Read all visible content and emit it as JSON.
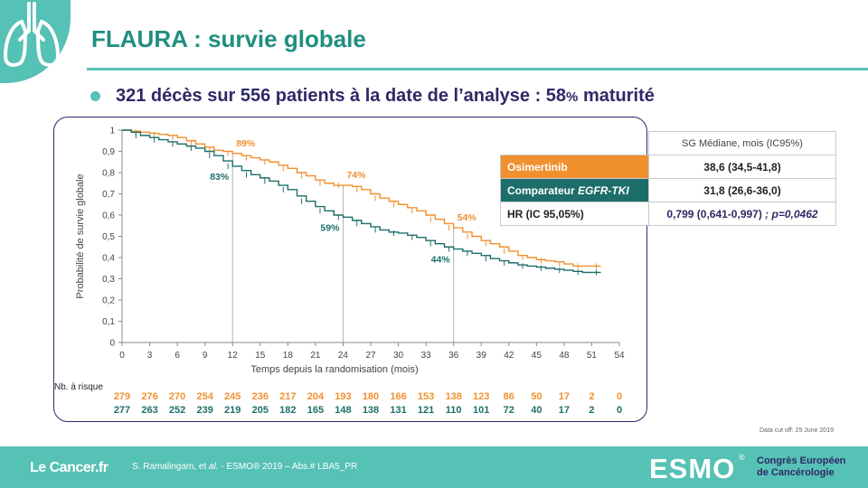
{
  "slide": {
    "title": "FLAURA : survie globale",
    "subtitle_main": "321 décès sur 556 patients à la date de l’analyse : 58",
    "subtitle_pct": "%",
    "subtitle_tail": " maturité",
    "data_cutoff": "Data cut off: 25 June 2019"
  },
  "icons": {
    "badge": "lungs-icon"
  },
  "colors": {
    "teal": "#56c1b5",
    "title": "#1f8f80",
    "navy": "#2e2a66",
    "osimertinib": "#f0902e",
    "comparator": "#1d6e6a"
  },
  "chart_data": {
    "type": "line",
    "xlabel": "Temps depuis la randomisation (mois)",
    "ylabel": "Probabilité de survie globale",
    "xlim": [
      0,
      54
    ],
    "ylim": [
      0,
      1
    ],
    "xticks": [
      "0",
      "3",
      "6",
      "9",
      "12",
      "15",
      "18",
      "21",
      "24",
      "27",
      "30",
      "33",
      "36",
      "39",
      "42",
      "45",
      "48",
      "51",
      "54"
    ],
    "yticks": [
      "0",
      "0,1",
      "0,2",
      "0,3",
      "0,4",
      "0,5",
      "0,6",
      "0,7",
      "0,8",
      "0,9",
      "1"
    ],
    "series": [
      {
        "color": "#f0902e",
        "points": [
          [
            0,
            1
          ],
          [
            1,
            0.995
          ],
          [
            2,
            0.99
          ],
          [
            3,
            0.985
          ],
          [
            4,
            0.98
          ],
          [
            5,
            0.975
          ],
          [
            6,
            0.965
          ],
          [
            7,
            0.95
          ],
          [
            8,
            0.935
          ],
          [
            9,
            0.92
          ],
          [
            10,
            0.905
          ],
          [
            11,
            0.9
          ],
          [
            12,
            0.89
          ],
          [
            13,
            0.88
          ],
          [
            14,
            0.87
          ],
          [
            15,
            0.86
          ],
          [
            16,
            0.85
          ],
          [
            17,
            0.835
          ],
          [
            18,
            0.82
          ],
          [
            19,
            0.8
          ],
          [
            20,
            0.785
          ],
          [
            21,
            0.765
          ],
          [
            22,
            0.75
          ],
          [
            23,
            0.74
          ],
          [
            24,
            0.74
          ],
          [
            25,
            0.735
          ],
          [
            26,
            0.72
          ],
          [
            27,
            0.7
          ],
          [
            28,
            0.68
          ],
          [
            29,
            0.665
          ],
          [
            30,
            0.65
          ],
          [
            31,
            0.635
          ],
          [
            32,
            0.62
          ],
          [
            33,
            0.6
          ],
          [
            34,
            0.58
          ],
          [
            35,
            0.56
          ],
          [
            36,
            0.54
          ],
          [
            37,
            0.52
          ],
          [
            38,
            0.5
          ],
          [
            39,
            0.48
          ],
          [
            40,
            0.465
          ],
          [
            41,
            0.45
          ],
          [
            42,
            0.43
          ],
          [
            43,
            0.41
          ],
          [
            44,
            0.4
          ],
          [
            45,
            0.39
          ],
          [
            46,
            0.385
          ],
          [
            47,
            0.38
          ],
          [
            48,
            0.37
          ],
          [
            49,
            0.36
          ],
          [
            50,
            0.36
          ],
          [
            51,
            0.36
          ],
          [
            52,
            0.36
          ]
        ]
      },
      {
        "color": "#1d6e6a",
        "points": [
          [
            0,
            1
          ],
          [
            1,
            0.99
          ],
          [
            2,
            0.975
          ],
          [
            3,
            0.965
          ],
          [
            4,
            0.955
          ],
          [
            5,
            0.945
          ],
          [
            6,
            0.935
          ],
          [
            7,
            0.925
          ],
          [
            8,
            0.915
          ],
          [
            9,
            0.9
          ],
          [
            10,
            0.88
          ],
          [
            11,
            0.855
          ],
          [
            12,
            0.83
          ],
          [
            13,
            0.81
          ],
          [
            14,
            0.79
          ],
          [
            15,
            0.775
          ],
          [
            16,
            0.76
          ],
          [
            17,
            0.74
          ],
          [
            18,
            0.72
          ],
          [
            19,
            0.69
          ],
          [
            20,
            0.665
          ],
          [
            21,
            0.64
          ],
          [
            22,
            0.62
          ],
          [
            23,
            0.6
          ],
          [
            24,
            0.59
          ],
          [
            25,
            0.575
          ],
          [
            26,
            0.56
          ],
          [
            27,
            0.545
          ],
          [
            28,
            0.53
          ],
          [
            29,
            0.52
          ],
          [
            30,
            0.515
          ],
          [
            31,
            0.505
          ],
          [
            32,
            0.495
          ],
          [
            33,
            0.48
          ],
          [
            34,
            0.465
          ],
          [
            35,
            0.45
          ],
          [
            36,
            0.44
          ],
          [
            37,
            0.43
          ],
          [
            38,
            0.42
          ],
          [
            39,
            0.41
          ],
          [
            40,
            0.395
          ],
          [
            41,
            0.385
          ],
          [
            42,
            0.375
          ],
          [
            43,
            0.365
          ],
          [
            44,
            0.36
          ],
          [
            45,
            0.355
          ],
          [
            46,
            0.35
          ],
          [
            47,
            0.345
          ],
          [
            48,
            0.34
          ],
          [
            49,
            0.335
          ],
          [
            50,
            0.33
          ],
          [
            51,
            0.33
          ],
          [
            52,
            0.33
          ]
        ]
      }
    ],
    "annotations": [
      {
        "text": "89%",
        "x": 12,
        "y": 0.89,
        "series": 0
      },
      {
        "text": "83%",
        "x": 12,
        "y": 0.83,
        "series": 1
      },
      {
        "text": "74%",
        "x": 24,
        "y": 0.74,
        "series": 0
      },
      {
        "text": "59%",
        "x": 24,
        "y": 0.59,
        "series": 1
      },
      {
        "text": "54%",
        "x": 36,
        "y": 0.54,
        "series": 0
      },
      {
        "text": "44%",
        "x": 36,
        "y": 0.44,
        "series": 1
      }
    ],
    "reference_lines_x": [
      12,
      24,
      36
    ],
    "risk_table": {
      "label": "Nb. à risque",
      "osimertinib": [
        "279",
        "276",
        "270",
        "254",
        "245",
        "236",
        "217",
        "204",
        "193",
        "180",
        "166",
        "153",
        "138",
        "123",
        "86",
        "50",
        "17",
        "2",
        "0"
      ],
      "comparator": [
        "277",
        "263",
        "252",
        "239",
        "219",
        "205",
        "182",
        "165",
        "148",
        "138",
        "131",
        "121",
        "110",
        "101",
        "72",
        "40",
        "17",
        "2",
        "0"
      ]
    }
  },
  "hr_table": {
    "header": "SG Médiane, mois (IC95%)",
    "rows": [
      {
        "label": "Osimertinib",
        "value": "38,6 (34,5-41,8)"
      },
      {
        "label": "Comparateur ",
        "label_em": "EGFR-TKI",
        "value": "31,8 (26,6-36,0)"
      },
      {
        "label": "HR (IC 95,05%)",
        "value": "0,799 (0,641-0,997)",
        "pvalue": " ; p=0,0462"
      }
    ]
  },
  "footer": {
    "logo_left": "Le Cancer.fr",
    "citation_pre": "S. Ramalingam, et ",
    "citation_em": "al.",
    "citation_post": " - ESMO® 2019 – Abs.# LBA5_PR",
    "logo_esmo": "ESMO",
    "logo_reg": "®",
    "congress_line1": "Congrès Européen",
    "congress_line2": "de Cancérologie"
  }
}
